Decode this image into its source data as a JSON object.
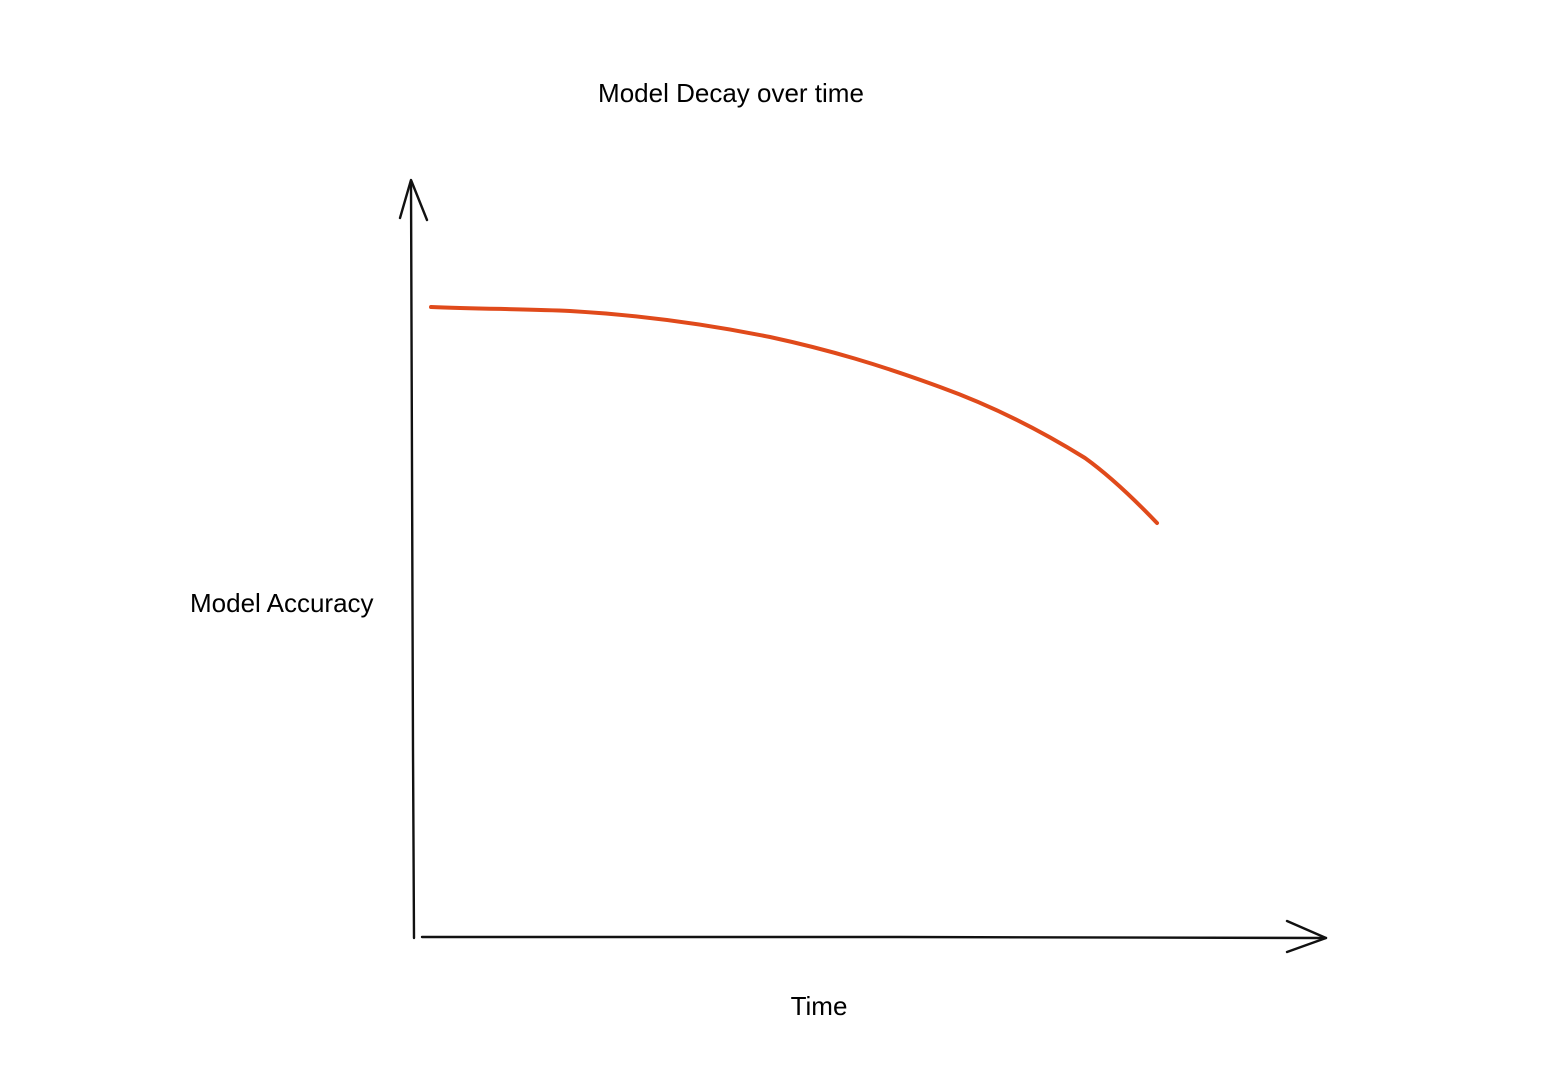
{
  "title": "Model Decay over time",
  "y_axis_label": "Model Accuracy",
  "x_axis_label": "Time"
}
